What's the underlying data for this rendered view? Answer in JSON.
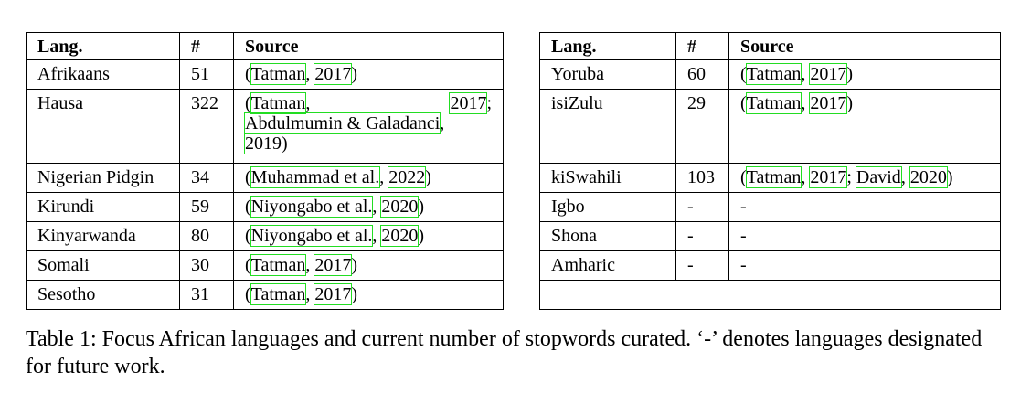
{
  "left_table": {
    "headers": [
      "Lang.",
      "#",
      "Source"
    ],
    "rows": [
      {
        "lang": "Afrikaans",
        "count": "51",
        "src": [
          {
            "t": "("
          },
          {
            "c": "Tatman"
          },
          {
            "t": ", "
          },
          {
            "c": "2017"
          },
          {
            "t": ")"
          }
        ]
      },
      {
        "lang": "Hausa",
        "count": "322",
        "src_lines": [
          {
            "justify": true,
            "parts": [
              {
                "t": "("
              },
              {
                "c": "Tatman"
              },
              {
                "t": ","
              }
            ],
            "right": [
              {
                "c": "2017"
              },
              {
                "t": ";"
              }
            ]
          },
          {
            "parts": [
              {
                "c": "Abdulmumin & Galadanci"
              },
              {
                "t": ","
              }
            ]
          },
          {
            "parts": [
              {
                "c": "2019"
              },
              {
                "t": ")"
              }
            ]
          }
        ]
      },
      {
        "lang": "Nigerian Pidgin",
        "count": "34",
        "src": [
          {
            "t": "("
          },
          {
            "c": "Muhammad et al."
          },
          {
            "t": ", "
          },
          {
            "c": "2022"
          },
          {
            "t": ")"
          }
        ]
      },
      {
        "lang": "Kirundi",
        "count": "59",
        "src": [
          {
            "t": "("
          },
          {
            "c": "Niyongabo et al."
          },
          {
            "t": ", "
          },
          {
            "c": "2020"
          },
          {
            "t": ")"
          }
        ]
      },
      {
        "lang": "Kinyarwanda",
        "count": "80",
        "src": [
          {
            "t": "("
          },
          {
            "c": "Niyongabo et al."
          },
          {
            "t": ", "
          },
          {
            "c": "2020"
          },
          {
            "t": ")"
          }
        ]
      },
      {
        "lang": "Somali",
        "count": "30",
        "src": [
          {
            "t": "("
          },
          {
            "c": "Tatman"
          },
          {
            "t": ", "
          },
          {
            "c": "2017"
          },
          {
            "t": ")"
          }
        ]
      },
      {
        "lang": "Sesotho",
        "count": "31",
        "src": [
          {
            "t": "("
          },
          {
            "c": "Tatman"
          },
          {
            "t": ", "
          },
          {
            "c": "2017"
          },
          {
            "t": ")"
          }
        ]
      }
    ]
  },
  "right_table": {
    "headers": [
      "Lang.",
      "#",
      "Source"
    ],
    "rows": [
      {
        "lang": "Yoruba",
        "count": "60",
        "src": [
          {
            "t": "("
          },
          {
            "c": "Tatman"
          },
          {
            "t": ", "
          },
          {
            "c": "2017"
          },
          {
            "t": ")"
          }
        ]
      },
      {
        "lang": "isiZulu",
        "count": "29",
        "tall": true,
        "src": [
          {
            "t": "("
          },
          {
            "c": "Tatman"
          },
          {
            "t": ", "
          },
          {
            "c": "2017"
          },
          {
            "t": ")"
          }
        ]
      },
      {
        "lang": "kiSwahili",
        "count": "103",
        "src": [
          {
            "t": "("
          },
          {
            "c": "Tatman"
          },
          {
            "t": ", "
          },
          {
            "c": "2017"
          },
          {
            "t": "; "
          },
          {
            "c": "David"
          },
          {
            "t": ", "
          },
          {
            "c": "2020"
          },
          {
            "t": ")"
          }
        ]
      },
      {
        "lang": "Igbo",
        "count": "-",
        "src": [
          {
            "t": "-"
          }
        ]
      },
      {
        "lang": "Shona",
        "count": "-",
        "src": [
          {
            "t": "-"
          }
        ]
      },
      {
        "lang": "Amharic",
        "count": "-",
        "src": [
          {
            "t": "-"
          }
        ]
      }
    ]
  },
  "caption": "Table 1: Focus African languages and current number of stopwords curated. ‘-’ denotes languages designated for future work.",
  "colors": {
    "citation_outline": "#22dd22",
    "border": "#000000"
  }
}
